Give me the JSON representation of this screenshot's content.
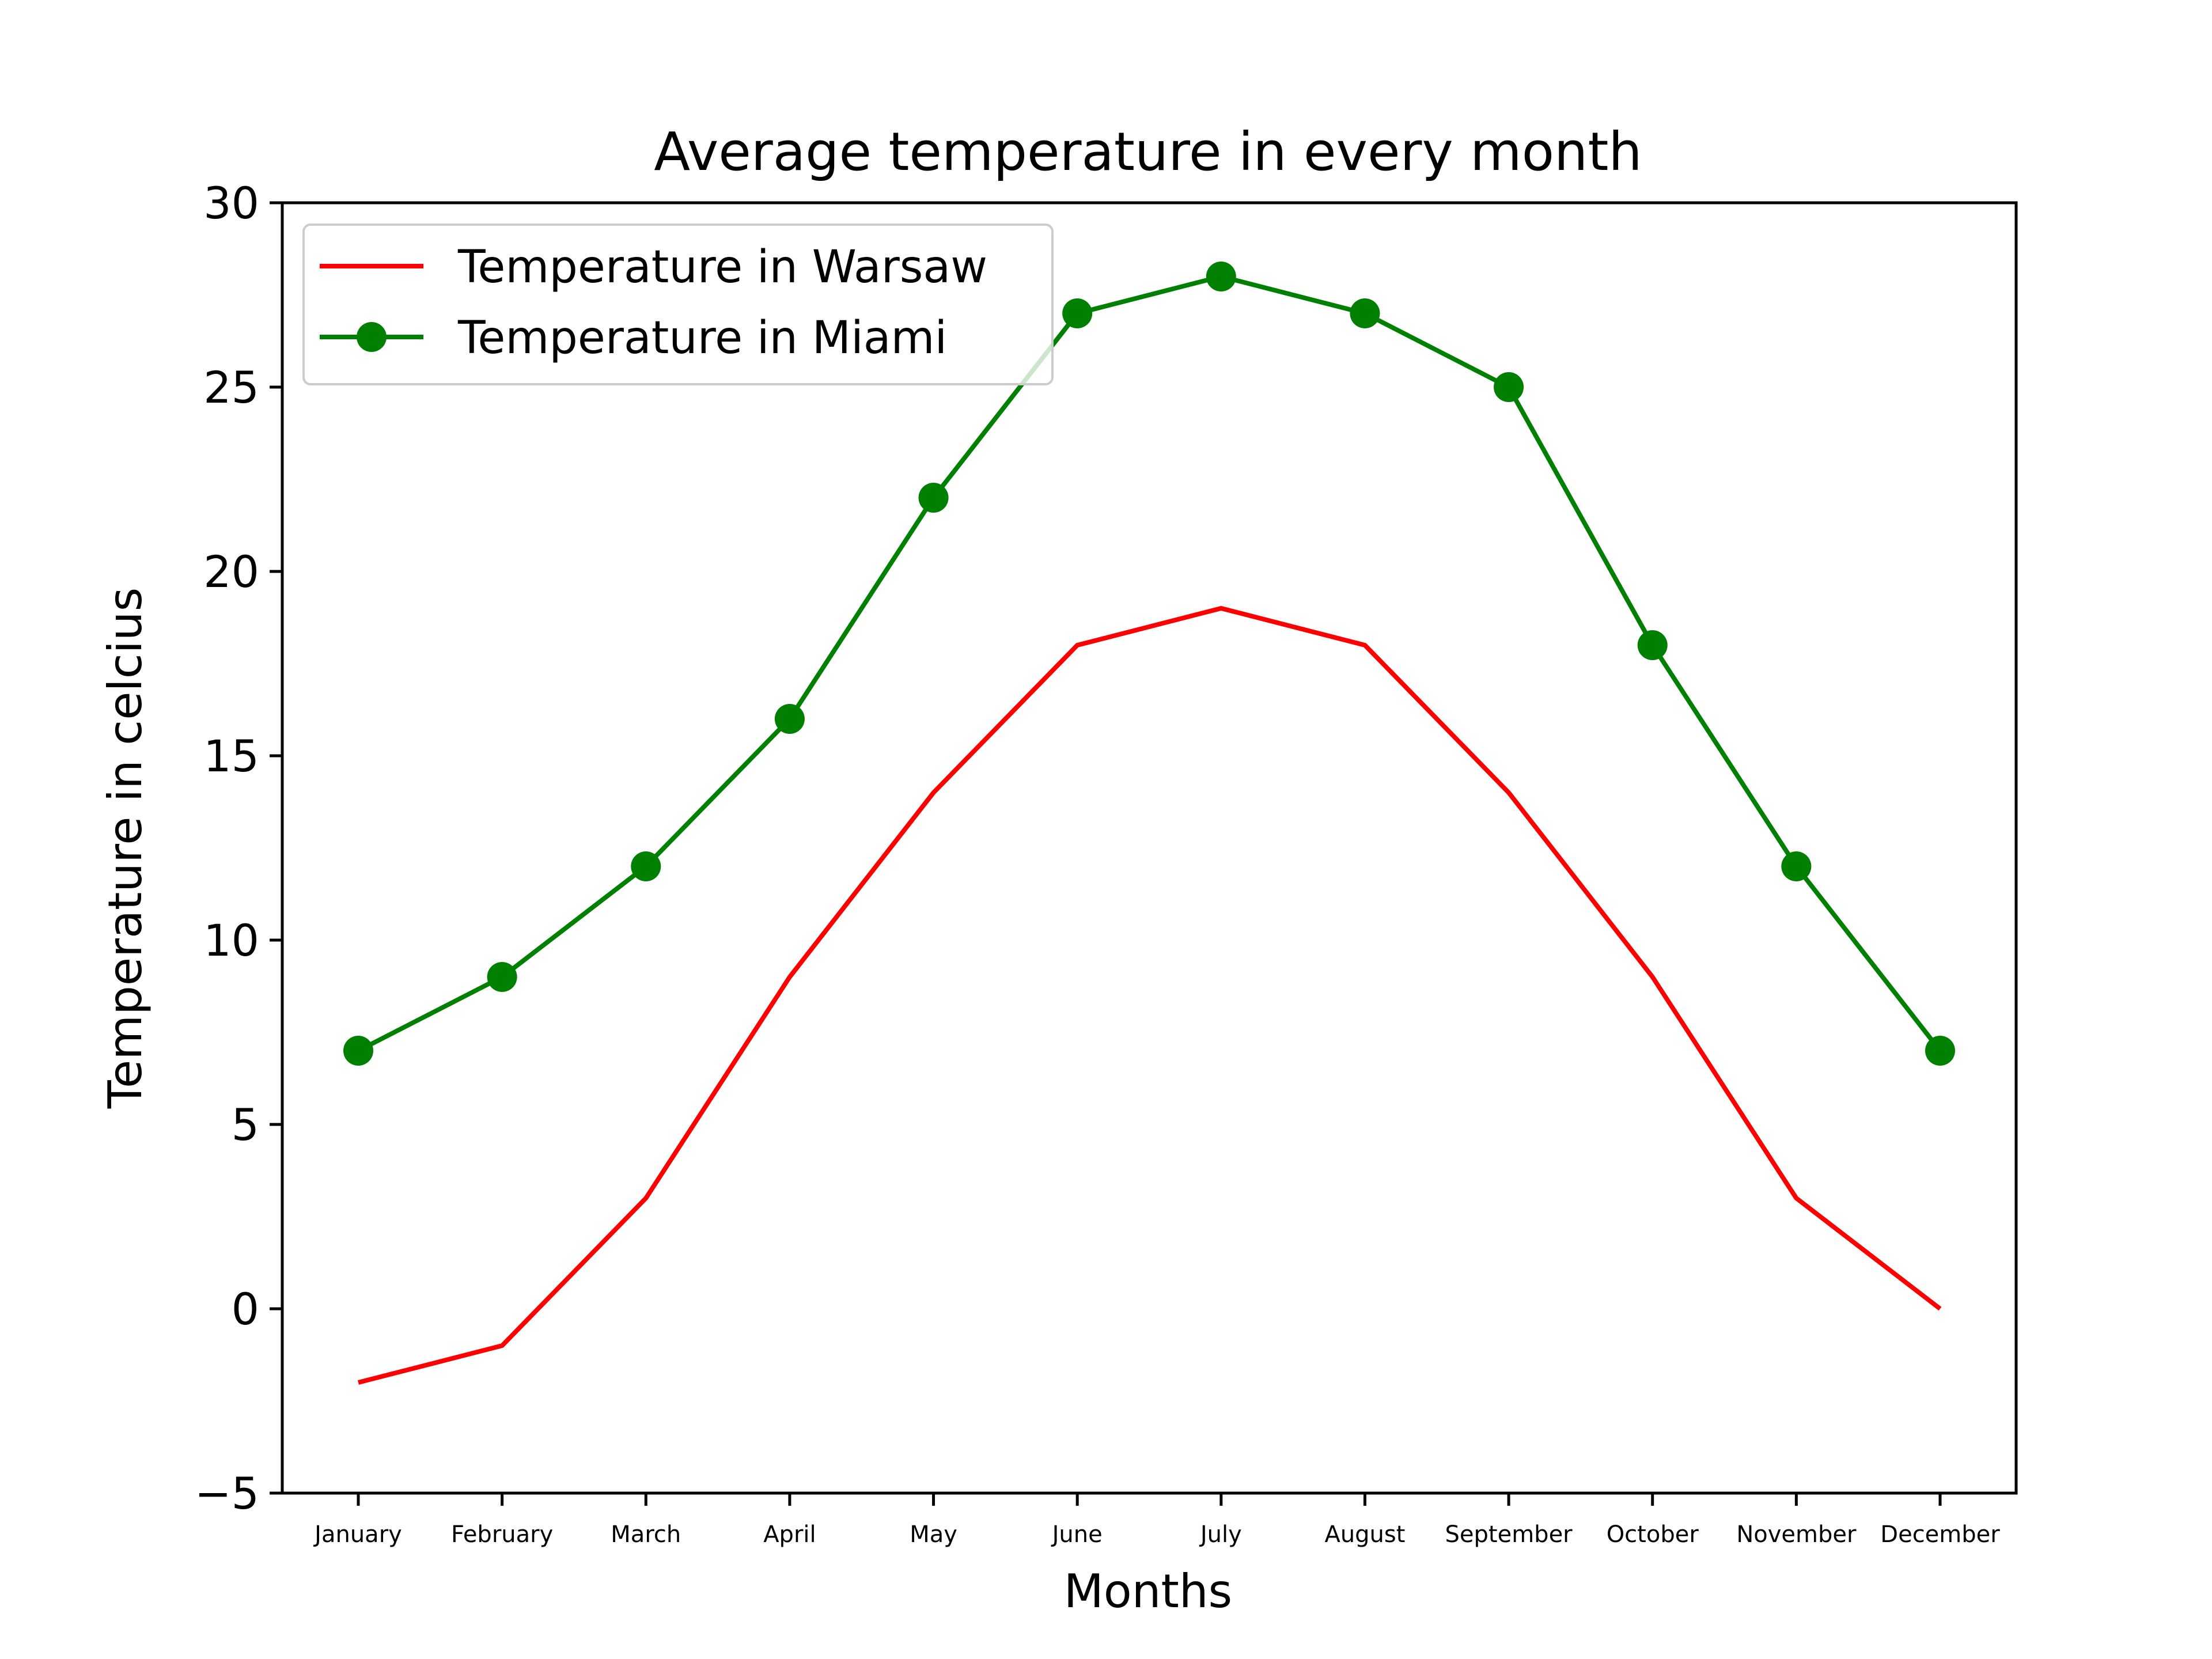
{
  "chart_data": {
    "type": "line",
    "title": "Average temperature in every month",
    "xlabel": "Months",
    "ylabel": "Temperature in celcius",
    "categories": [
      "January",
      "February",
      "March",
      "April",
      "May",
      "June",
      "July",
      "August",
      "September",
      "October",
      "November",
      "December"
    ],
    "ylim": [
      -5,
      30
    ],
    "yticks": [
      -5,
      0,
      5,
      10,
      15,
      20,
      25,
      30
    ],
    "ytick_labels": [
      "−5",
      "0",
      "5",
      "10",
      "15",
      "20",
      "25",
      "30"
    ],
    "grid": false,
    "legend_position": "upper-left",
    "series": [
      {
        "name": "Temperature in Warsaw",
        "color": "#ff0000",
        "marker": "none",
        "values": [
          -2,
          -1,
          3,
          9,
          14,
          18,
          19,
          18,
          14,
          9,
          3,
          0
        ]
      },
      {
        "name": "Temperature in Miami",
        "color": "#008000",
        "marker": "circle",
        "values": [
          7,
          9,
          12,
          16,
          22,
          27,
          28,
          27,
          25,
          18,
          12,
          7
        ]
      }
    ]
  }
}
